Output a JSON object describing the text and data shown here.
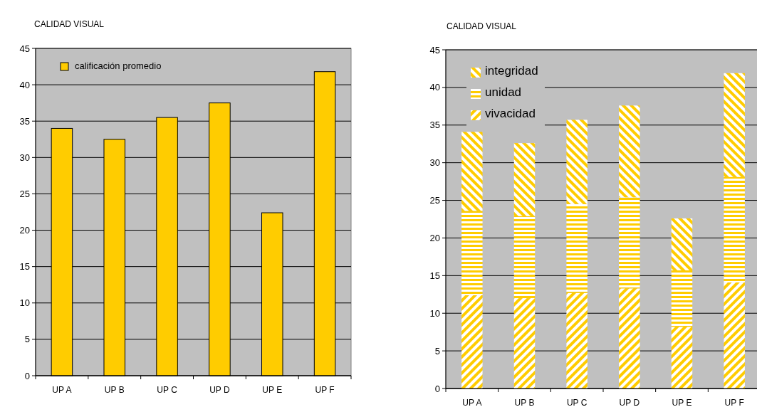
{
  "chart_data": [
    {
      "type": "bar",
      "title": "CALIDAD VISUAL",
      "categories": [
        "UP A",
        "UP B",
        "UP C",
        "UP D",
        "UP E",
        "UP F"
      ],
      "series": [
        {
          "name": "calificación promedio",
          "color": "#ffcc00",
          "values": [
            34,
            32.5,
            35.5,
            37.5,
            22.4,
            41.8
          ]
        }
      ],
      "ylim": [
        0,
        45
      ],
      "yticks": [
        0,
        5,
        10,
        15,
        20,
        25,
        30,
        35,
        40,
        45
      ],
      "grid": "y",
      "legend": "top left"
    },
    {
      "type": "bar",
      "title": "CALIDAD VISUAL",
      "categories": [
        "UP A",
        "UP B",
        "UP C",
        "UP D",
        "UP E",
        "UP F"
      ],
      "stacked": true,
      "series": [
        {
          "name": "vivacidad",
          "color": "#ffcc00",
          "values": [
            12.4,
            12.0,
            12.7,
            13.3,
            8.2,
            14.1
          ]
        },
        {
          "name": "unidad",
          "color": "#ffcc00",
          "values": [
            11.2,
            10.9,
            11.8,
            12.1,
            7.5,
            14.0
          ]
        },
        {
          "name": "integridad",
          "color": "#ffcc00",
          "values": [
            10.5,
            9.7,
            11.2,
            12.2,
            6.9,
            13.8
          ]
        }
      ],
      "ylim": [
        0,
        45
      ],
      "yticks": [
        0,
        5,
        10,
        15,
        20,
        25,
        30,
        35,
        40,
        45
      ],
      "grid": "y",
      "legend": "top left"
    }
  ]
}
